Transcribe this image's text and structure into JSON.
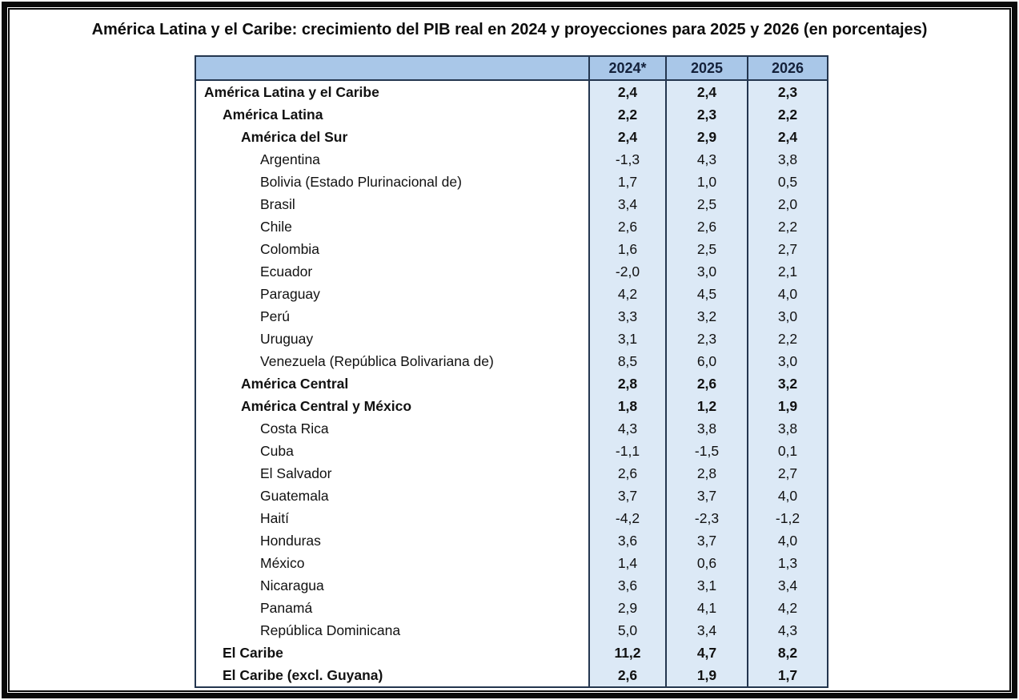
{
  "title": "América Latina y el Caribe: crecimiento del PIB real en 2024 y proyecciones para 2025 y 2026 (en porcentajes)",
  "table": {
    "columns": [
      "2024*",
      "2025",
      "2026"
    ],
    "rows": [
      {
        "label": "América Latina y el Caribe",
        "level": 0,
        "bold": true,
        "values": [
          "2,4",
          "2,4",
          "2,3"
        ]
      },
      {
        "label": "América Latina",
        "level": 1,
        "bold": true,
        "values": [
          "2,2",
          "2,3",
          "2,2"
        ]
      },
      {
        "label": "América del Sur",
        "level": 2,
        "bold": true,
        "values": [
          "2,4",
          "2,9",
          "2,4"
        ]
      },
      {
        "label": "Argentina",
        "level": 3,
        "bold": false,
        "values": [
          "-1,3",
          "4,3",
          "3,8"
        ]
      },
      {
        "label": "Bolivia (Estado Plurinacional de)",
        "level": 3,
        "bold": false,
        "values": [
          "1,7",
          "1,0",
          "0,5"
        ]
      },
      {
        "label": "Brasil",
        "level": 3,
        "bold": false,
        "values": [
          "3,4",
          "2,5",
          "2,0"
        ]
      },
      {
        "label": "Chile",
        "level": 3,
        "bold": false,
        "values": [
          "2,6",
          "2,6",
          "2,2"
        ]
      },
      {
        "label": "Colombia",
        "level": 3,
        "bold": false,
        "values": [
          "1,6",
          "2,5",
          "2,7"
        ]
      },
      {
        "label": "Ecuador",
        "level": 3,
        "bold": false,
        "values": [
          "-2,0",
          "3,0",
          "2,1"
        ]
      },
      {
        "label": "Paraguay",
        "level": 3,
        "bold": false,
        "values": [
          "4,2",
          "4,5",
          "4,0"
        ]
      },
      {
        "label": "Perú",
        "level": 3,
        "bold": false,
        "values": [
          "3,3",
          "3,2",
          "3,0"
        ]
      },
      {
        "label": "Uruguay",
        "level": 3,
        "bold": false,
        "values": [
          "3,1",
          "2,3",
          "2,2"
        ]
      },
      {
        "label": "Venezuela (República Bolivariana de)",
        "level": 3,
        "bold": false,
        "values": [
          "8,5",
          "6,0",
          "3,0"
        ]
      },
      {
        "label": "América Central",
        "level": 2,
        "bold": true,
        "values": [
          "2,8",
          "2,6",
          "3,2"
        ]
      },
      {
        "label": "América Central y México",
        "level": 2,
        "bold": true,
        "values": [
          "1,8",
          "1,2",
          "1,9"
        ]
      },
      {
        "label": "Costa Rica",
        "level": 3,
        "bold": false,
        "values": [
          "4,3",
          "3,8",
          "3,8"
        ]
      },
      {
        "label": "Cuba",
        "level": 3,
        "bold": false,
        "values": [
          "-1,1",
          "-1,5",
          "0,1"
        ]
      },
      {
        "label": "El Salvador",
        "level": 3,
        "bold": false,
        "values": [
          "2,6",
          "2,8",
          "2,7"
        ]
      },
      {
        "label": "Guatemala",
        "level": 3,
        "bold": false,
        "values": [
          "3,7",
          "3,7",
          "4,0"
        ]
      },
      {
        "label": "Haití",
        "level": 3,
        "bold": false,
        "values": [
          "-4,2",
          "-2,3",
          "-1,2"
        ]
      },
      {
        "label": "Honduras",
        "level": 3,
        "bold": false,
        "values": [
          "3,6",
          "3,7",
          "4,0"
        ]
      },
      {
        "label": "México",
        "level": 3,
        "bold": false,
        "values": [
          "1,4",
          "0,6",
          "1,3"
        ]
      },
      {
        "label": "Nicaragua",
        "level": 3,
        "bold": false,
        "values": [
          "3,6",
          "3,1",
          "3,4"
        ]
      },
      {
        "label": "Panamá",
        "level": 3,
        "bold": false,
        "values": [
          "2,9",
          "4,1",
          "4,2"
        ]
      },
      {
        "label": "República Dominicana",
        "level": 3,
        "bold": false,
        "values": [
          "5,0",
          "3,4",
          "4,3"
        ]
      },
      {
        "label": "El Caribe",
        "level": 1,
        "bold": true,
        "values": [
          "11,2",
          "4,7",
          "8,2"
        ]
      },
      {
        "label": "El Caribe (excl. Guyana)",
        "level": 1,
        "bold": true,
        "values": [
          "2,6",
          "1,9",
          "1,7"
        ]
      }
    ]
  },
  "colors": {
    "header_bg": "#a9c7e8",
    "value_bg": "#dce9f6",
    "border": "#24364f",
    "text": "#111111"
  }
}
